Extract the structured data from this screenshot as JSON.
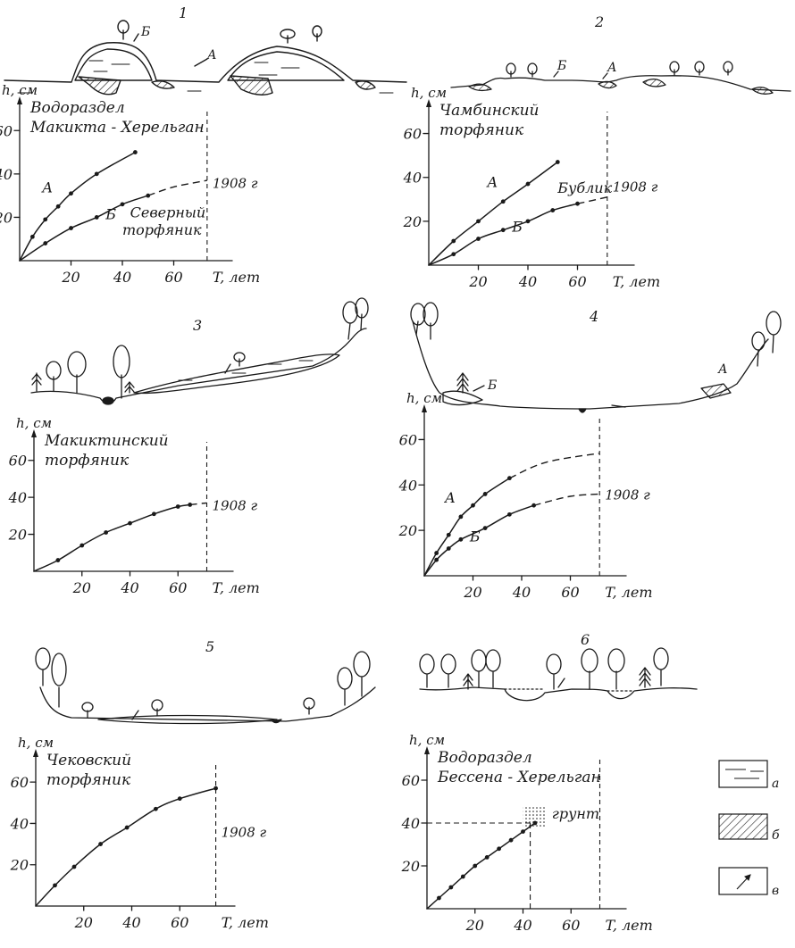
{
  "chart_data": [
    {
      "type": "line",
      "panel_number": "1",
      "title": [
        "Водораздел",
        "Макикта - Херельган"
      ],
      "ylabel": "h, см",
      "xlabel": "T, лет",
      "x_ticks": [
        "20",
        "40",
        "60"
      ],
      "y_ticks": [
        "20",
        "40",
        "60"
      ],
      "xlim": [
        0,
        80
      ],
      "ylim": [
        0,
        70
      ],
      "year_label": "1908 г",
      "year_x": 73,
      "annotations": [
        {
          "text": "Северный",
          "x": 43,
          "y": 20
        },
        {
          "text": "торфяник",
          "x": 40,
          "y": 12
        }
      ],
      "profile_labels": [
        "Б",
        "А"
      ],
      "series": [
        {
          "name": "А",
          "points": [
            [
              0,
              0
            ],
            [
              5,
              11
            ],
            [
              10,
              19
            ],
            [
              15,
              25
            ],
            [
              20,
              31
            ],
            [
              30,
              40
            ],
            [
              45,
              50
            ]
          ],
          "dashed_to": null
        },
        {
          "name": "Б",
          "points": [
            [
              0,
              0
            ],
            [
              10,
              8
            ],
            [
              20,
              15
            ],
            [
              30,
              20
            ],
            [
              40,
              26
            ],
            [
              50,
              30
            ]
          ],
          "dashed_to": [
            [
              60,
              34
            ],
            [
              73,
              37
            ]
          ]
        }
      ]
    },
    {
      "type": "line",
      "panel_number": "2",
      "title": [
        "Чамбинский",
        "торфяник"
      ],
      "ylabel": "h, см",
      "xlabel": "T, лет",
      "x_ticks": [
        "20",
        "40",
        "60"
      ],
      "y_ticks": [
        "20",
        "40",
        "60"
      ],
      "xlim": [
        0,
        80
      ],
      "ylim": [
        0,
        70
      ],
      "year_label": "1908 г",
      "year_x": 72,
      "annotations": [
        {
          "text": "Бублик",
          "x": 52,
          "y": 33
        }
      ],
      "profile_labels": [
        "Б",
        "А"
      ],
      "series": [
        {
          "name": "А",
          "points": [
            [
              0,
              0
            ],
            [
              10,
              11
            ],
            [
              20,
              20
            ],
            [
              30,
              29
            ],
            [
              40,
              37
            ],
            [
              52,
              47
            ]
          ],
          "dashed_to": null
        },
        {
          "name": "Б",
          "points": [
            [
              0,
              0
            ],
            [
              10,
              5
            ],
            [
              20,
              12
            ],
            [
              30,
              16
            ],
            [
              40,
              20
            ],
            [
              50,
              25
            ],
            [
              60,
              28
            ]
          ],
          "dashed_to": [
            [
              72,
              31
            ]
          ]
        }
      ]
    },
    {
      "type": "line",
      "panel_number": "3",
      "title": [
        "Макиктинский",
        "торфяник"
      ],
      "ylabel": "h, см",
      "xlabel": "T, лет",
      "x_ticks": [
        "20",
        "40",
        "60"
      ],
      "y_ticks": [
        "20",
        "40",
        "60"
      ],
      "xlim": [
        0,
        80
      ],
      "ylim": [
        0,
        70
      ],
      "year_label": "1908 г",
      "year_x": 72,
      "annotations": [],
      "profile_labels": [],
      "series": [
        {
          "name": "",
          "points": [
            [
              0,
              0
            ],
            [
              10,
              6
            ],
            [
              20,
              14
            ],
            [
              30,
              21
            ],
            [
              40,
              26
            ],
            [
              50,
              31
            ],
            [
              60,
              35
            ],
            [
              65,
              36
            ]
          ],
          "dashed_to": [
            [
              72,
              37
            ]
          ]
        }
      ]
    },
    {
      "type": "line",
      "panel_number": "4",
      "title": [],
      "ylabel": "h, см",
      "xlabel": "T, лет",
      "x_ticks": [
        "20",
        "40",
        "60"
      ],
      "y_ticks": [
        "20",
        "40",
        "60"
      ],
      "xlim": [
        0,
        80
      ],
      "ylim": [
        0,
        70
      ],
      "year_label": "1908 г",
      "year_x": 72,
      "annotations": [],
      "profile_labels": [
        "Б",
        "А"
      ],
      "series": [
        {
          "name": "А",
          "points": [
            [
              0,
              0
            ],
            [
              5,
              10
            ],
            [
              10,
              18
            ],
            [
              15,
              26
            ],
            [
              20,
              31
            ],
            [
              25,
              36
            ],
            [
              35,
              43
            ]
          ],
          "dashed_to": [
            [
              50,
              50
            ],
            [
              72,
              54
            ]
          ]
        },
        {
          "name": "Б",
          "points": [
            [
              0,
              0
            ],
            [
              5,
              7
            ],
            [
              10,
              12
            ],
            [
              15,
              16
            ],
            [
              25,
              21
            ],
            [
              35,
              27
            ],
            [
              45,
              31
            ]
          ],
          "dashed_to": [
            [
              60,
              35
            ],
            [
              72,
              36
            ]
          ]
        }
      ]
    },
    {
      "type": "line",
      "panel_number": "5",
      "title": [
        "Чековский",
        "торфяник"
      ],
      "ylabel": "h, см",
      "xlabel": "T, лет",
      "x_ticks": [
        "20",
        "40",
        "60"
      ],
      "y_ticks": [
        "20",
        "40",
        "60"
      ],
      "xlim": [
        0,
        80
      ],
      "ylim": [
        0,
        70
      ],
      "year_label": "1908 г",
      "year_x": 75,
      "annotations": [],
      "profile_labels": [],
      "series": [
        {
          "name": "",
          "points": [
            [
              0,
              0
            ],
            [
              8,
              10
            ],
            [
              16,
              19
            ],
            [
              27,
              30
            ],
            [
              38,
              38
            ],
            [
              50,
              47
            ],
            [
              60,
              52
            ],
            [
              75,
              57
            ]
          ],
          "dashed_to": null
        }
      ]
    },
    {
      "type": "line",
      "panel_number": "6",
      "title": [
        "Водораздел",
        "Бессена - Херельган"
      ],
      "ylabel": "h, см",
      "xlabel": "T, лет",
      "x_ticks": [
        "20",
        "40",
        "60"
      ],
      "y_ticks": [
        "20",
        "40",
        "60"
      ],
      "xlim": [
        0,
        80
      ],
      "ylim": [
        0,
        70
      ],
      "year_label": "",
      "year_x": 72,
      "annotations": [
        {
          "text": "грунт",
          "x": 52,
          "y": 42
        }
      ],
      "ref_lines": {
        "x": 43,
        "y": 40
      },
      "profile_labels": [],
      "series": [
        {
          "name": "",
          "points": [
            [
              0,
              0
            ],
            [
              5,
              5
            ],
            [
              10,
              10
            ],
            [
              15,
              15
            ],
            [
              20,
              20
            ],
            [
              25,
              24
            ],
            [
              30,
              28
            ],
            [
              35,
              32
            ],
            [
              40,
              36
            ],
            [
              45,
              40
            ]
          ],
          "dashed_to": null
        }
      ]
    }
  ],
  "legend": [
    {
      "key": "а",
      "pattern": "peat-lines"
    },
    {
      "key": "б",
      "pattern": "hatch"
    },
    {
      "key": "в",
      "pattern": "arrow"
    }
  ]
}
